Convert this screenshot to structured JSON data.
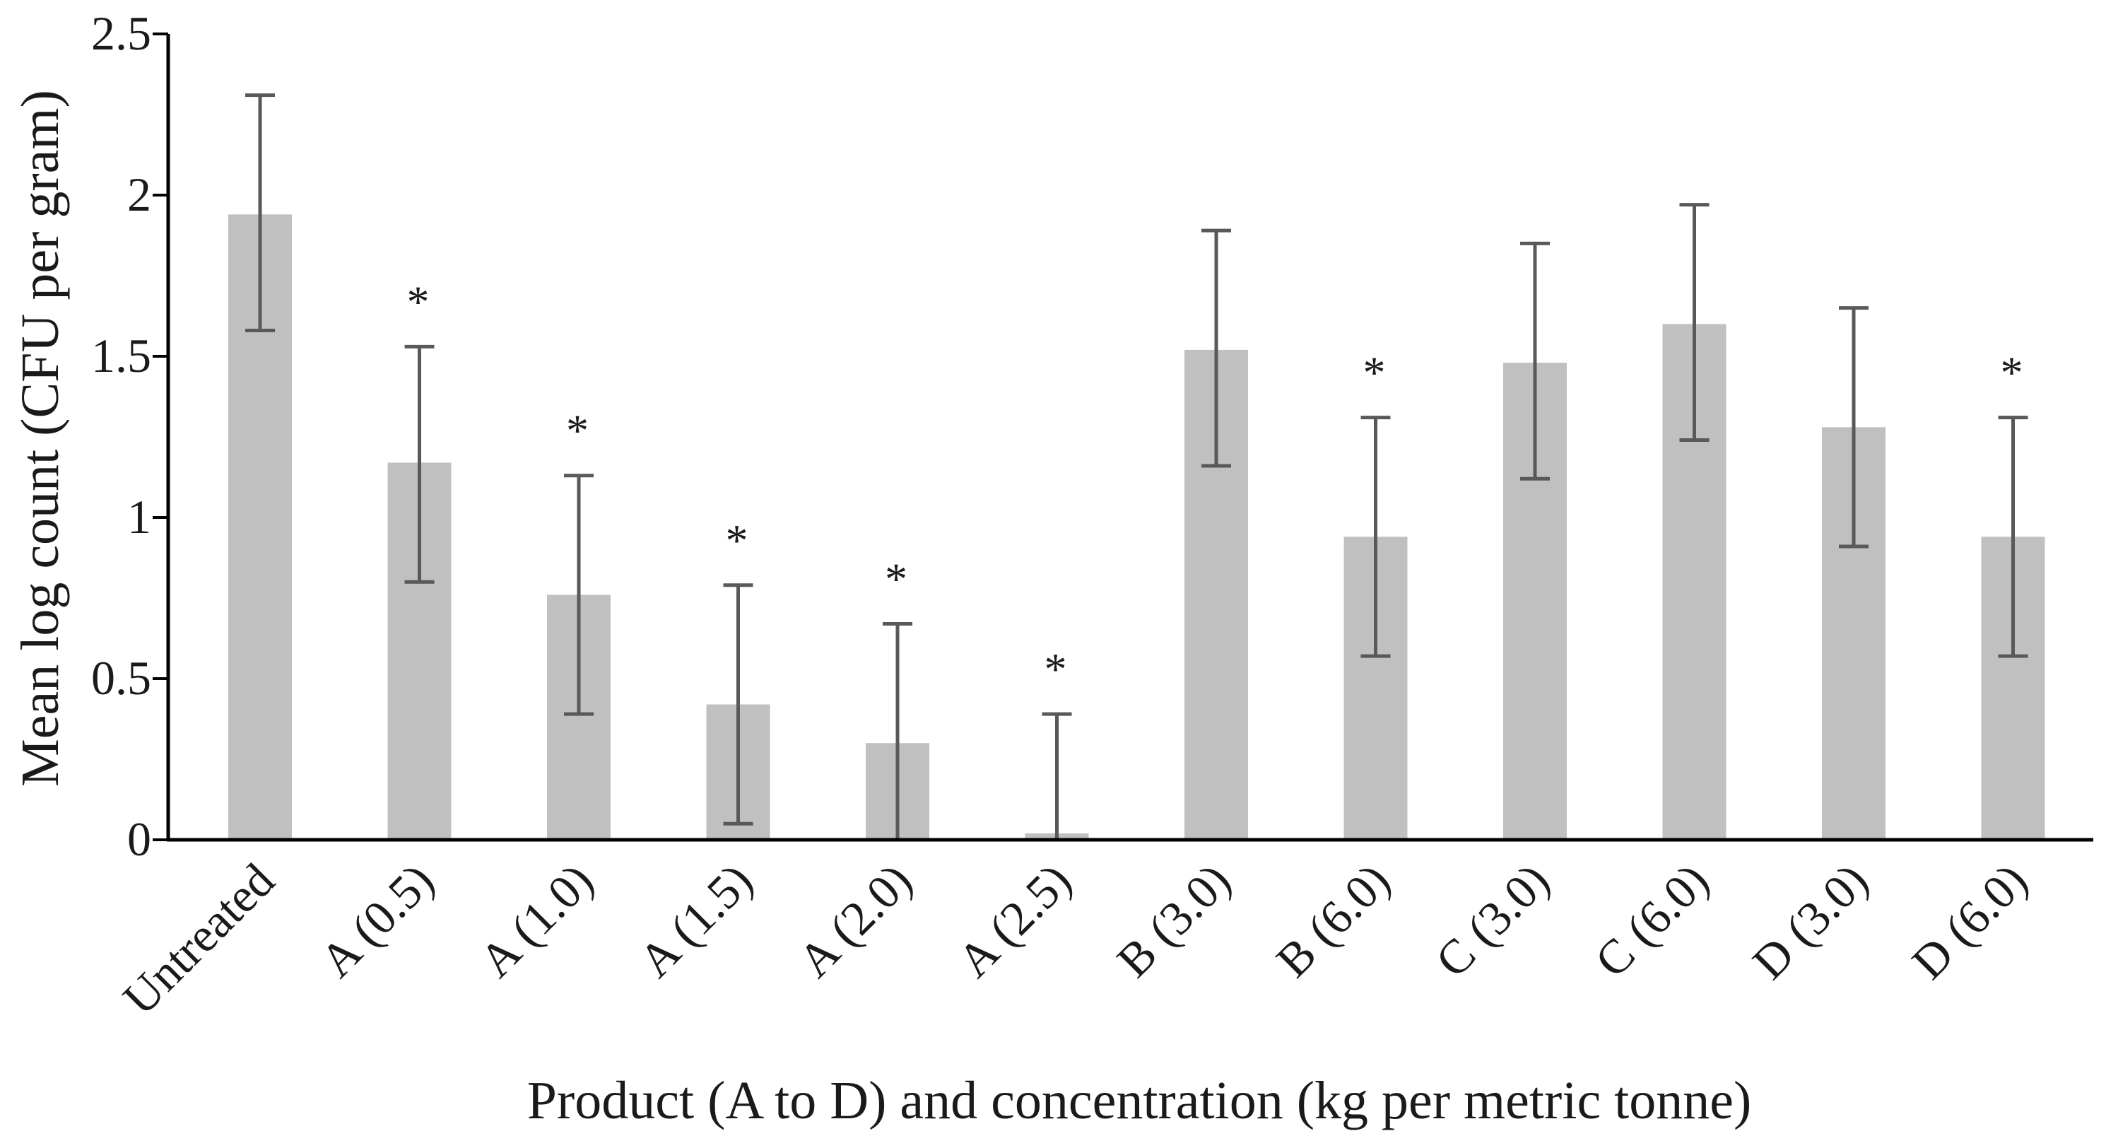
{
  "chart_data": {
    "type": "bar",
    "title": "",
    "xlabel": "Product (A to D) and concentration (kg per metric tonne)",
    "ylabel": "Mean log count (CFU per gram)",
    "ylim": [
      0,
      2.5
    ],
    "yticks": [
      0,
      0.5,
      1,
      1.5,
      2,
      2.5
    ],
    "ytick_labels": [
      "0",
      "0.5",
      "1",
      "1.5",
      "2",
      "2.5"
    ],
    "categories": [
      "Untreated",
      "A (0.5)",
      "A (1.0)",
      "A (1.5)",
      "A (2.0)",
      "A (2.5)",
      "B (3.0)",
      "B (6.0)",
      "C (3.0)",
      "C (6.0)",
      "D (3.0)",
      "D (6.0)"
    ],
    "values": [
      1.94,
      1.17,
      0.76,
      0.42,
      0.3,
      0.02,
      1.52,
      0.94,
      1.48,
      1.6,
      1.28,
      0.94
    ],
    "error_low": [
      1.58,
      0.8,
      0.39,
      0.05,
      0.0,
      0.0,
      1.16,
      0.57,
      1.12,
      1.24,
      0.91,
      0.57
    ],
    "error_high": [
      2.31,
      1.53,
      1.13,
      0.79,
      0.67,
      0.39,
      1.89,
      1.31,
      1.85,
      1.97,
      1.65,
      1.31
    ],
    "significance": [
      "",
      "*",
      "*",
      "*",
      "*",
      "*",
      "",
      "*",
      "",
      "",
      "",
      "*"
    ],
    "colors": {
      "bar": "#c0c0c0",
      "error_bar": "#595959",
      "axis": "#000000",
      "text": "#1a1a1a"
    }
  }
}
